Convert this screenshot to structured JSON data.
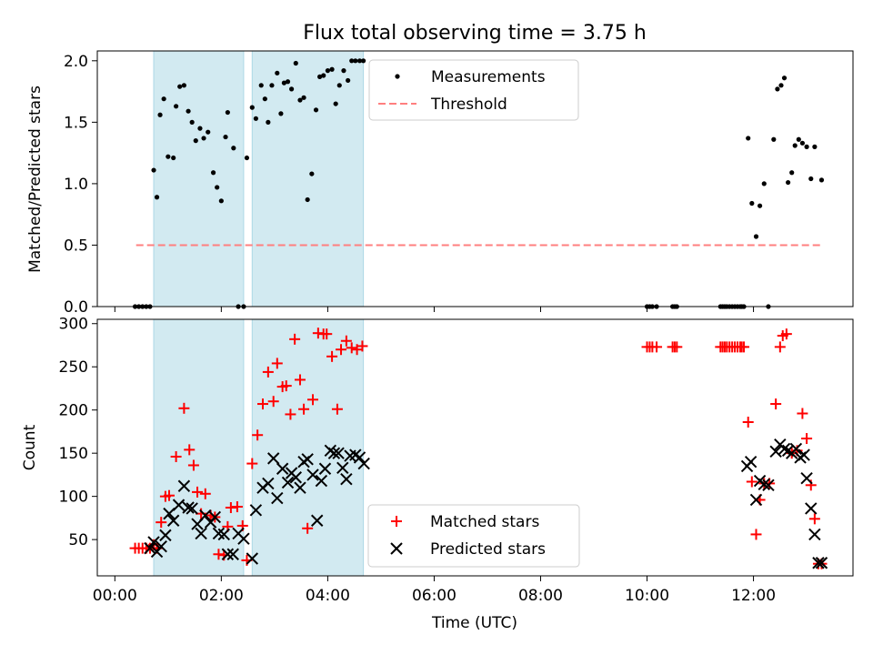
{
  "chart_data": [
    {
      "type": "scatter",
      "title": "Flux total observing time = 3.75 h",
      "xlabel": "",
      "ylabel": "Matched/Predicted stars",
      "xlim": [
        -0.33,
        13.87
      ],
      "ylim": [
        0.0,
        2.08
      ],
      "yticks": [
        0.0,
        0.5,
        1.0,
        1.5,
        2.0
      ],
      "ytick_labels": [
        "0.0",
        "0.5",
        "1.0",
        "1.5",
        "2.0"
      ],
      "shaded_regions": [
        [
          0.73,
          2.42
        ],
        [
          2.58,
          4.67
        ]
      ],
      "shade_color": "#add8e6",
      "legend": [
        "Measurements",
        "Threshold"
      ],
      "legend_position": "upper-center",
      "series": [
        {
          "name": "Measurements",
          "marker": "dot",
          "color": "#000000",
          "x": [
            0.38,
            0.45,
            0.52,
            0.59,
            0.66,
            0.73,
            0.79,
            0.85,
            0.92,
            1.0,
            1.1,
            1.15,
            1.22,
            1.3,
            1.38,
            1.45,
            1.52,
            1.6,
            1.67,
            1.75,
            1.85,
            1.92,
            2.0,
            2.08,
            2.12,
            2.23,
            2.32,
            2.42,
            2.48,
            2.58,
            2.65,
            2.75,
            2.82,
            2.88,
            2.95,
            3.05,
            3.12,
            3.18,
            3.25,
            3.32,
            3.4,
            3.48,
            3.55,
            3.62,
            3.7,
            3.78,
            3.85,
            3.92,
            4.0,
            4.08,
            4.15,
            4.22,
            4.3,
            4.38,
            4.45,
            4.52,
            4.6,
            4.67,
            10.0,
            10.05,
            10.1,
            10.18,
            10.48,
            10.52,
            10.56,
            11.38,
            11.42,
            11.46,
            11.5,
            11.55,
            11.6,
            11.65,
            11.7,
            11.75,
            11.78,
            11.82,
            11.9,
            11.97,
            12.05,
            12.12,
            12.2,
            12.28,
            12.38,
            12.45,
            12.52,
            12.58,
            12.65,
            12.72,
            12.78,
            12.85,
            12.92,
            13.0,
            13.08,
            13.15,
            13.28
          ],
          "y": [
            0.0,
            0.0,
            0.0,
            0.0,
            0.0,
            1.11,
            0.89,
            1.56,
            1.69,
            1.22,
            1.21,
            1.63,
            1.79,
            1.8,
            1.59,
            1.5,
            1.35,
            1.45,
            1.37,
            1.42,
            1.09,
            0.97,
            0.86,
            1.38,
            1.58,
            1.29,
            0.0,
            0.0,
            1.21,
            1.62,
            1.53,
            1.8,
            1.69,
            1.5,
            1.8,
            1.9,
            1.57,
            1.82,
            1.83,
            1.77,
            1.98,
            1.68,
            1.7,
            0.87,
            1.08,
            1.6,
            1.87,
            1.88,
            1.92,
            1.93,
            1.65,
            1.8,
            1.92,
            1.84,
            2.0,
            2.0,
            2.0,
            2.0,
            0.0,
            0.0,
            0.0,
            0.0,
            0.0,
            0.0,
            0.0,
            0.0,
            0.0,
            0.0,
            0.0,
            0.0,
            0.0,
            0.0,
            0.0,
            0.0,
            0.0,
            0.0,
            1.37,
            0.84,
            0.57,
            0.82,
            1.0,
            0.0,
            1.36,
            1.77,
            1.8,
            1.86,
            1.01,
            1.09,
            1.31,
            1.36,
            1.33,
            1.3,
            1.04,
            1.3,
            1.03
          ]
        },
        {
          "name": "Threshold",
          "marker": "dashed-line",
          "color": "#ff7f7f",
          "x": [
            0.4,
            13.27
          ],
          "y": [
            0.5,
            0.5
          ]
        }
      ]
    },
    {
      "type": "scatter",
      "title": "",
      "xlabel": "Time (UTC)",
      "ylabel": "Count",
      "xlim": [
        -0.33,
        13.87
      ],
      "ylim": [
        8,
        305
      ],
      "yticks": [
        50,
        100,
        150,
        200,
        250,
        300
      ],
      "ytick_labels": [
        "50",
        "100",
        "150",
        "200",
        "250",
        "300"
      ],
      "xticks": [
        0,
        2,
        4,
        6,
        8,
        10,
        12
      ],
      "xtick_labels": [
        "00:00",
        "02:00",
        "04:00",
        "06:00",
        "08:00",
        "10:00",
        "12:00"
      ],
      "shaded_regions": [
        [
          0.73,
          2.42
        ],
        [
          2.58,
          4.67
        ]
      ],
      "shade_color": "#add8e6",
      "legend": [
        "Matched stars",
        "Predicted stars"
      ],
      "legend_position": "lower-center",
      "series": [
        {
          "name": "Matched stars",
          "marker": "plus",
          "color": "#ff0000",
          "x": [
            0.38,
            0.45,
            0.52,
            0.59,
            0.66,
            0.73,
            0.79,
            0.87,
            0.95,
            1.02,
            1.15,
            1.3,
            1.4,
            1.48,
            1.55,
            1.62,
            1.7,
            1.8,
            1.88,
            1.95,
            2.05,
            2.12,
            2.18,
            2.3,
            2.4,
            2.48,
            2.58,
            2.68,
            2.78,
            2.88,
            2.98,
            3.05,
            3.15,
            3.22,
            3.3,
            3.38,
            3.48,
            3.55,
            3.62,
            3.72,
            3.82,
            3.92,
            3.98,
            4.08,
            4.18,
            4.25,
            4.35,
            4.45,
            4.55,
            4.65,
            10.0,
            10.05,
            10.1,
            10.18,
            10.48,
            10.52,
            10.56,
            11.38,
            11.42,
            11.46,
            11.5,
            11.55,
            11.6,
            11.65,
            11.7,
            11.75,
            11.78,
            11.82,
            11.9,
            11.97,
            12.05,
            12.12,
            12.2,
            12.3,
            12.42,
            12.5,
            12.55,
            12.62,
            12.72,
            12.82,
            12.92,
            13.0,
            13.08,
            13.15,
            13.22,
            13.28
          ],
          "y": [
            40,
            40,
            40,
            40,
            40,
            44,
            40,
            70,
            100,
            101,
            146,
            202,
            154,
            136,
            105,
            80,
            103,
            78,
            76,
            33,
            32,
            65,
            87,
            88,
            66,
            26,
            138,
            171,
            207,
            244,
            210,
            254,
            227,
            228,
            195,
            282,
            235,
            201,
            63,
            212,
            289,
            288,
            288,
            262,
            201,
            270,
            280,
            272,
            270,
            274,
            273,
            273,
            273,
            273,
            273,
            273,
            273,
            273,
            273,
            273,
            273,
            273,
            273,
            273,
            273,
            273,
            273,
            273,
            186,
            117,
            56,
            96,
            115,
            115,
            207,
            273,
            286,
            288,
            150,
            153,
            196,
            167,
            113,
            74,
            22,
            22
          ]
        },
        {
          "name": "Predicted stars",
          "marker": "x",
          "color": "#000000",
          "x": [
            0.66,
            0.73,
            0.79,
            0.87,
            0.95,
            1.02,
            1.1,
            1.2,
            1.3,
            1.38,
            1.45,
            1.55,
            1.62,
            1.7,
            1.8,
            1.88,
            1.95,
            2.05,
            2.12,
            2.22,
            2.32,
            2.42,
            2.58,
            2.65,
            2.78,
            2.88,
            2.98,
            3.05,
            3.15,
            3.25,
            3.32,
            3.4,
            3.48,
            3.55,
            3.62,
            3.72,
            3.8,
            3.88,
            3.95,
            4.05,
            4.12,
            4.2,
            4.28,
            4.35,
            4.42,
            4.52,
            4.6,
            4.68,
            11.88,
            11.95,
            12.05,
            12.12,
            12.2,
            12.28,
            12.42,
            12.5,
            12.58,
            12.65,
            12.72,
            12.8,
            12.88,
            12.95,
            13.0,
            13.08,
            13.15,
            13.22,
            13.28
          ],
          "y": [
            40,
            47,
            36,
            42,
            55,
            80,
            72,
            90,
            112,
            87,
            86,
            68,
            57,
            78,
            70,
            76,
            57,
            56,
            33,
            33,
            57,
            51,
            28,
            84,
            110,
            115,
            144,
            98,
            132,
            116,
            127,
            122,
            110,
            140,
            143,
            125,
            72,
            118,
            132,
            153,
            150,
            150,
            133,
            120,
            147,
            148,
            145,
            138,
            135,
            140,
            96,
            118,
            114,
            113,
            152,
            160,
            155,
            153,
            150,
            155,
            145,
            148,
            121,
            86,
            56,
            23,
            23
          ]
        }
      ]
    }
  ]
}
